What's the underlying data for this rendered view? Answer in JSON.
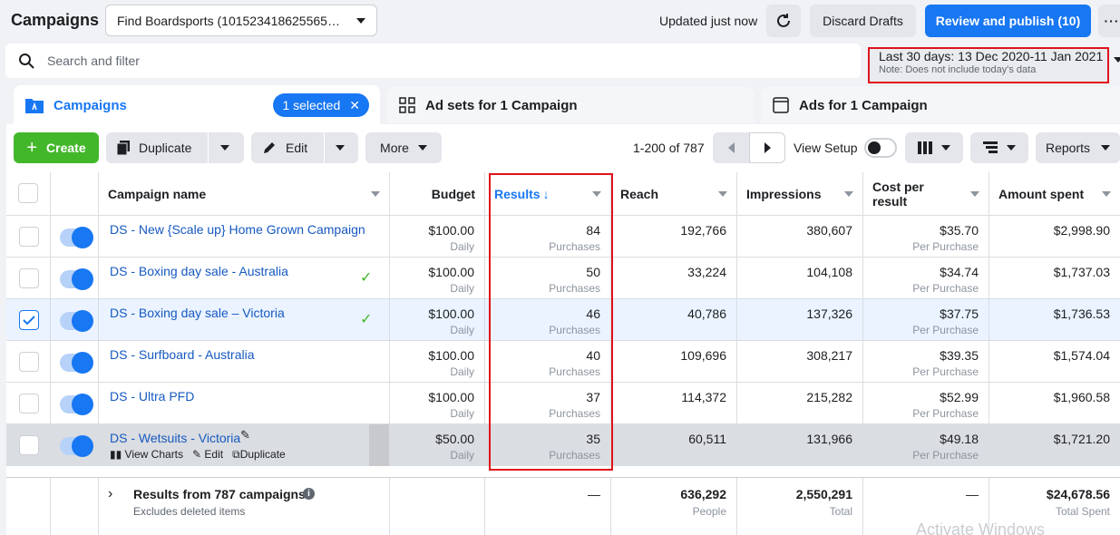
{
  "header": {
    "title": "Campaigns",
    "account": "Find Boardsports (101523418625565…",
    "updated": "Updated just now",
    "discard_label": "Discard Drafts",
    "publish_label": "Review and publish (10)",
    "more_label": "···"
  },
  "search": {
    "placeholder": "Search and filter"
  },
  "date_range": {
    "label": "Last 30 days: 13 Dec 2020-11 Jan 2021",
    "note": "Note: Does not include today's data"
  },
  "tabs": {
    "campaigns": "Campaigns",
    "selected_pill": "1 selected",
    "adsets": "Ad sets for 1 Campaign",
    "ads": "Ads for 1 Campaign"
  },
  "toolbar": {
    "create": "Create",
    "duplicate": "Duplicate",
    "edit": "Edit",
    "more": "More",
    "pager": "1-200 of 787",
    "view_setup": "View Setup",
    "reports": "Reports"
  },
  "columns": {
    "name": "Campaign name",
    "budget": "Budget",
    "results": "Results",
    "reach": "Reach",
    "impressions": "Impressions",
    "cost_line1": "Cost per",
    "cost_line2": "result",
    "spent": "Amount spent"
  },
  "rows": [
    {
      "name": "DS - New {Scale up} Home Grown Campaign",
      "budget": "$100.00",
      "budget_sub": "Daily",
      "results": "84",
      "results_sub": "Purchases",
      "reach": "192,766",
      "impressions": "380,607",
      "cost": "$35.70",
      "cost_sub": "Per Purchase",
      "spent": "$2,998.90"
    },
    {
      "name": "DS - Boxing day sale - Australia",
      "budget": "$100.00",
      "budget_sub": "Daily",
      "results": "50",
      "results_sub": "Purchases",
      "reach": "33,224",
      "impressions": "104,108",
      "cost": "$34.74",
      "cost_sub": "Per Purchase",
      "spent": "$1,737.03"
    },
    {
      "name": "DS - Boxing day sale – Victoria",
      "budget": "$100.00",
      "budget_sub": "Daily",
      "results": "46",
      "results_sub": "Purchases",
      "reach": "40,786",
      "impressions": "137,326",
      "cost": "$37.75",
      "cost_sub": "Per Purchase",
      "spent": "$1,736.53"
    },
    {
      "name": "DS - Surfboard - Australia",
      "budget": "$100.00",
      "budget_sub": "Daily",
      "results": "40",
      "results_sub": "Purchases",
      "reach": "109,696",
      "impressions": "308,217",
      "cost": "$39.35",
      "cost_sub": "Per Purchase",
      "spent": "$1,574.04"
    },
    {
      "name": "DS - Ultra PFD",
      "budget": "$100.00",
      "budget_sub": "Daily",
      "results": "37",
      "results_sub": "Purchases",
      "reach": "114,372",
      "impressions": "215,282",
      "cost": "$52.99",
      "cost_sub": "Per Purchase",
      "spent": "$1,960.58"
    },
    {
      "name": "DS - Wetsuits - Victoria",
      "budget": "$50.00",
      "budget_sub": "Daily",
      "results": "35",
      "results_sub": "Purchases",
      "reach": "60,511",
      "impressions": "131,966",
      "cost": "$49.18",
      "cost_sub": "Per Purchase",
      "spent": "$1,721.20"
    }
  ],
  "row_actions": {
    "charts": "View Charts",
    "edit": "Edit",
    "duplicate": "Duplicate"
  },
  "totals": {
    "label": "Results from 787 campaigns",
    "sub": "Excludes deleted items",
    "results": "—",
    "reach": "636,292",
    "reach_sub": "People",
    "impressions": "2,550,291",
    "impressions_sub": "Total",
    "cost": "—",
    "spent": "$24,678.56",
    "spent_sub": "Total Spent"
  },
  "watermark": "Activate Windows"
}
